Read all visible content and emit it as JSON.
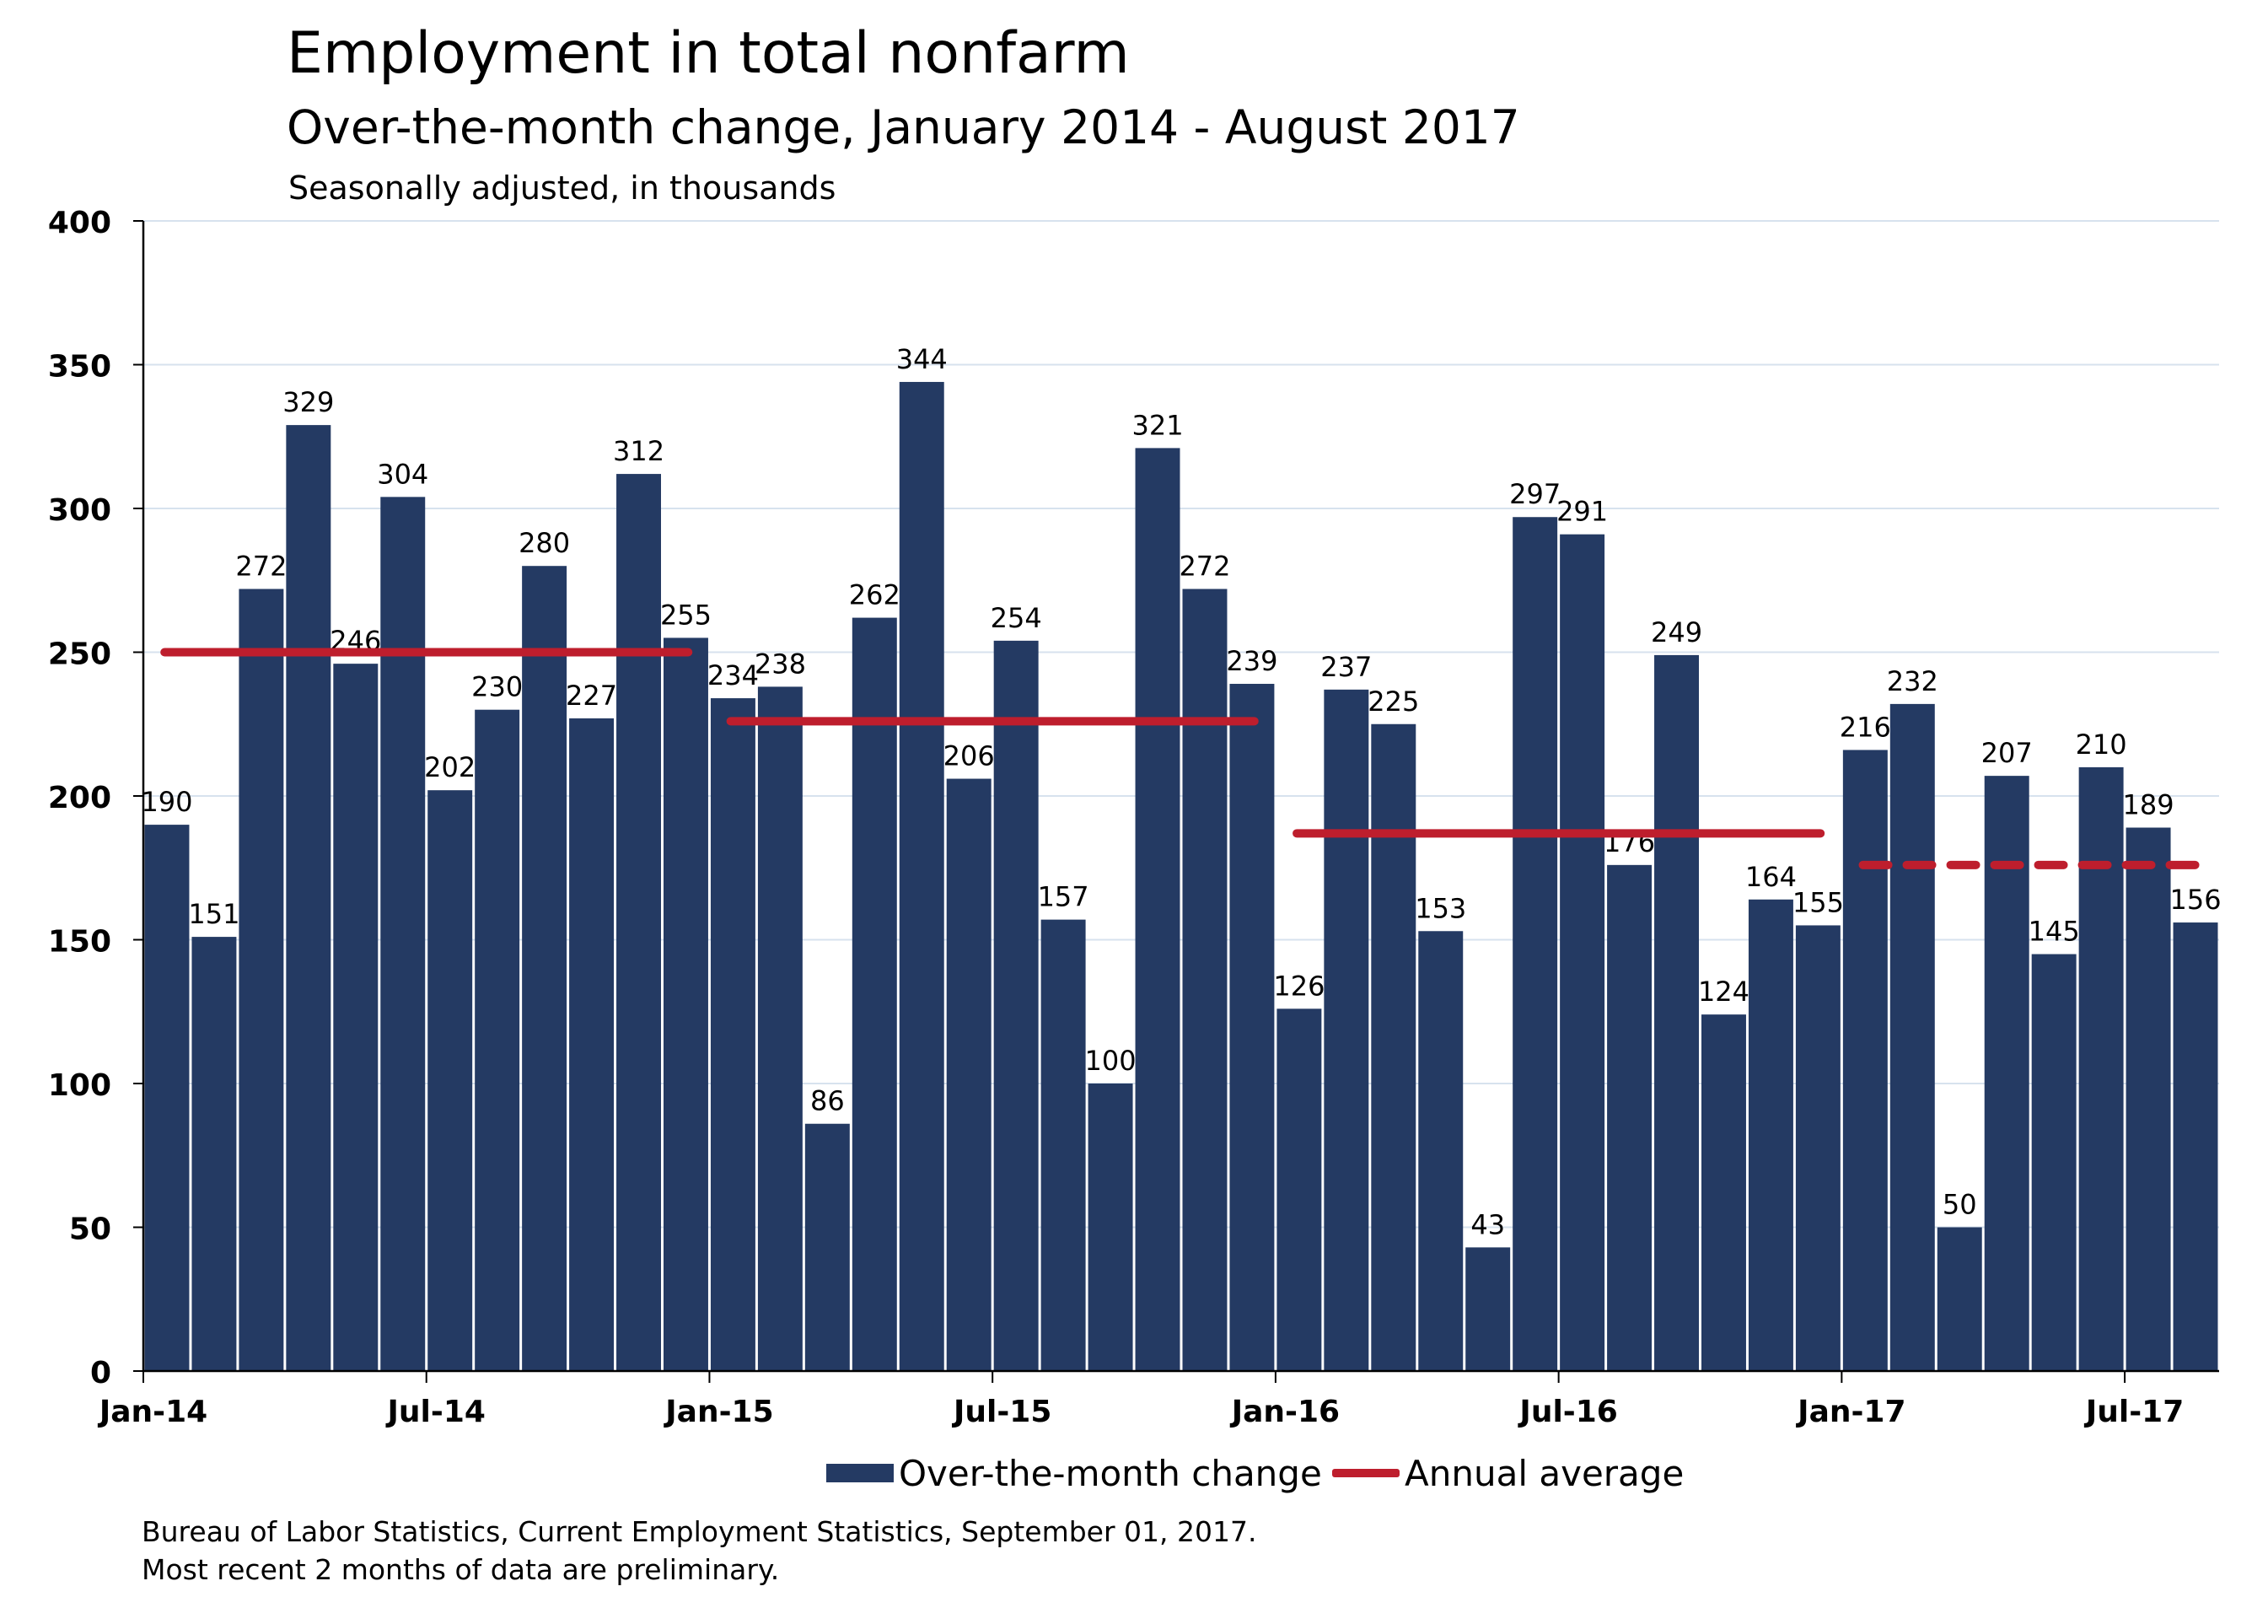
{
  "header": {
    "title": "Employment in total nonfarm",
    "subtitle": "Over-the-month change, January 2014 - August 2017",
    "units": "Seasonally adjusted, in thousands"
  },
  "legend": {
    "bars_label": "Over-the-month change",
    "line_label": "Annual average"
  },
  "source": {
    "line1": "Bureau of Labor Statistics, Current Employment Statistics, September 01, 2017.",
    "line2": "Most recent 2 months of data are preliminary."
  },
  "colors": {
    "bar": "#243A63",
    "average": "#BE1E2D",
    "grid": "#D7E2EE"
  },
  "chart_data": {
    "type": "bar",
    "title": "Employment in total nonfarm",
    "subtitle": "Over-the-month change, January 2014 - August 2017",
    "xlabel": "",
    "ylabel": "",
    "ylim": [
      0,
      400
    ],
    "yticks": [
      0,
      50,
      100,
      150,
      200,
      250,
      300,
      350,
      400
    ],
    "grid": true,
    "legend_position": "bottom",
    "x_tick_labels": [
      {
        "label": "Jan-14",
        "month_index": 0
      },
      {
        "label": "Jul-14",
        "month_index": 6
      },
      {
        "label": "Jan-15",
        "month_index": 12
      },
      {
        "label": "Jul-15",
        "month_index": 18
      },
      {
        "label": "Jan-16",
        "month_index": 24
      },
      {
        "label": "Jul-16",
        "month_index": 30
      },
      {
        "label": "Jan-17",
        "month_index": 36
      },
      {
        "label": "Jul-17",
        "month_index": 42
      }
    ],
    "series": [
      {
        "name": "Over-the-month change",
        "type": "bar",
        "values": [
          190,
          151,
          272,
          329,
          246,
          304,
          202,
          230,
          280,
          227,
          312,
          255,
          234,
          238,
          86,
          262,
          344,
          206,
          254,
          157,
          100,
          321,
          272,
          239,
          126,
          237,
          225,
          153,
          43,
          297,
          291,
          176,
          249,
          124,
          164,
          155,
          216,
          232,
          50,
          207,
          145,
          210,
          189,
          156
        ]
      },
      {
        "name": "Annual average",
        "type": "line",
        "segments": [
          {
            "year": "2014",
            "value": 250,
            "dashed": false
          },
          {
            "year": "2015",
            "value": 226,
            "dashed": false
          },
          {
            "year": "2016",
            "value": 187,
            "dashed": false
          },
          {
            "year": "2017",
            "value": 176,
            "dashed": true
          }
        ]
      }
    ]
  }
}
